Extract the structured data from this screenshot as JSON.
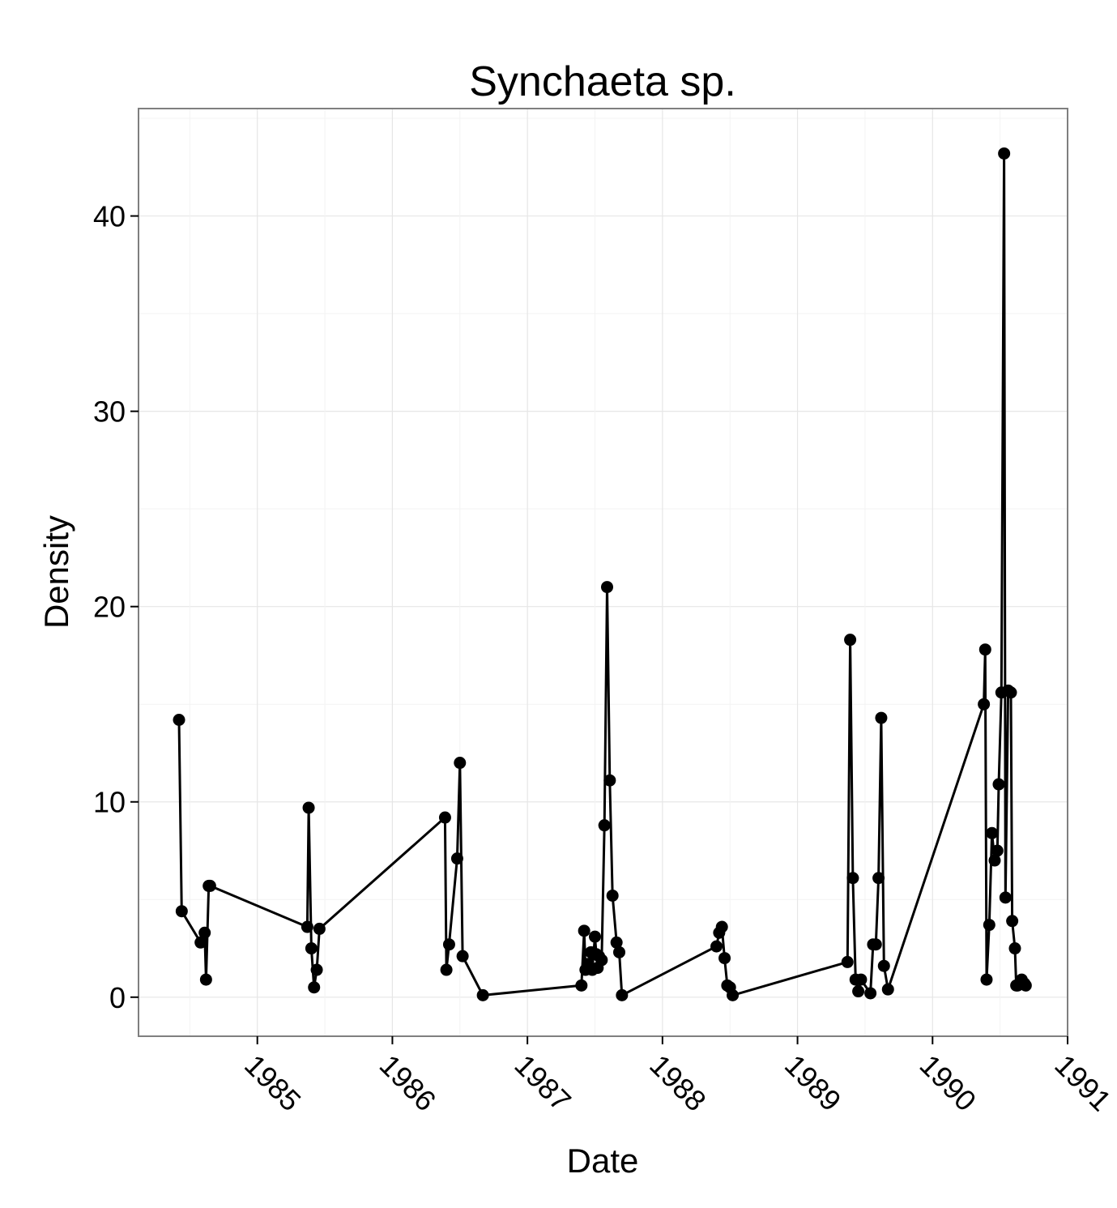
{
  "chart_data": {
    "type": "line",
    "title": "Synchaeta sp.",
    "xlabel": "Date",
    "ylabel": "Density",
    "x_ticks": [
      "1985",
      "1986",
      "1987",
      "1988",
      "1989",
      "1990",
      "1991"
    ],
    "y_ticks": [
      "0",
      "10",
      "20",
      "30",
      "40"
    ],
    "xlim": [
      1984.12,
      1991.0
    ],
    "ylim": [
      -2.0,
      45.5
    ],
    "grid": true,
    "markers": true,
    "line_color": "#000000",
    "series": [
      {
        "x": [
          1984.42,
          1984.44,
          1984.58,
          1984.61,
          1984.62,
          1984.64,
          1984.65,
          1985.37,
          1985.38,
          1985.4,
          1985.42,
          1985.44,
          1985.46,
          1986.39,
          1986.4,
          1986.42,
          1986.48,
          1986.5,
          1986.52,
          1986.67,
          1987.4,
          1987.42,
          1987.43,
          1987.45,
          1987.47,
          1987.48,
          1987.5,
          1987.51,
          1987.52,
          1987.53,
          1987.55,
          1987.57,
          1987.59,
          1987.61,
          1987.63,
          1987.66,
          1987.68,
          1987.7,
          1988.4,
          1988.42,
          1988.44,
          1988.46,
          1988.48,
          1988.5,
          1988.52,
          1989.37,
          1989.39,
          1989.41,
          1989.43,
          1989.45,
          1989.47,
          1989.54,
          1989.56,
          1989.58,
          1989.6,
          1989.62,
          1989.64,
          1989.67,
          1990.38,
          1990.39,
          1990.4,
          1990.42,
          1990.44,
          1990.46,
          1990.48,
          1990.49,
          1990.51,
          1990.53,
          1990.54,
          1990.56,
          1990.58,
          1990.59,
          1990.61,
          1990.62,
          1990.63,
          1990.66,
          1990.68,
          1990.69
        ],
        "values": [
          14.2,
          4.4,
          2.8,
          3.3,
          0.9,
          5.7,
          5.7,
          3.6,
          9.7,
          2.5,
          0.5,
          1.4,
          3.5,
          9.2,
          1.4,
          2.7,
          7.1,
          12.0,
          2.1,
          0.1,
          0.6,
          3.4,
          1.4,
          1.7,
          2.3,
          1.4,
          3.1,
          2.2,
          1.5,
          2.1,
          1.9,
          8.8,
          21.0,
          11.1,
          5.2,
          2.8,
          2.3,
          0.1,
          2.6,
          3.3,
          3.6,
          2.0,
          0.6,
          0.5,
          0.1,
          1.8,
          18.3,
          6.1,
          0.9,
          0.3,
          0.9,
          0.2,
          2.7,
          2.7,
          6.1,
          14.3,
          1.6,
          0.4,
          15.0,
          17.8,
          0.9,
          3.7,
          8.4,
          7.0,
          7.5,
          10.9,
          15.6,
          43.2,
          5.1,
          15.7,
          15.6,
          3.9,
          2.5,
          0.6,
          0.6,
          0.9,
          0.7,
          0.6
        ]
      }
    ]
  }
}
